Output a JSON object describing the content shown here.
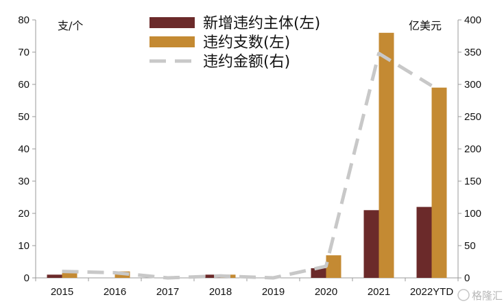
{
  "chart_data": {
    "type": "bar",
    "categories": [
      "2015",
      "2016",
      "2017",
      "2018",
      "2019",
      "2020",
      "2021",
      "2022YTD"
    ],
    "series": [
      {
        "name": "新增违约主体(左)",
        "axis": "left",
        "kind": "bar",
        "color": "#6B2A2A",
        "values": [
          1,
          0,
          0,
          1,
          0,
          3,
          21,
          22
        ]
      },
      {
        "name": "违约支数(左)",
        "axis": "left",
        "kind": "bar",
        "color": "#C48A33",
        "values": [
          2,
          2,
          0,
          1,
          0,
          7,
          76,
          59
        ]
      },
      {
        "name": "违约金额(右)",
        "axis": "right",
        "kind": "line",
        "style": "dashed",
        "color": "#C8C8C8",
        "values": [
          10,
          8,
          0,
          3,
          0,
          18,
          348,
          298
        ]
      }
    ],
    "y_left": {
      "unit": "支/个",
      "ylim": [
        0,
        80
      ],
      "ticks": [
        0,
        10,
        20,
        30,
        40,
        50,
        60,
        70,
        80
      ]
    },
    "y_right": {
      "unit": "亿美元",
      "ylim": [
        0,
        400
      ],
      "ticks": [
        0,
        50,
        100,
        150,
        200,
        250,
        300,
        350,
        400
      ]
    },
    "legend_position": "top-center",
    "grid": false
  },
  "watermark": {
    "icon": "gelonghui-logo-icon",
    "text": "格隆汇"
  }
}
